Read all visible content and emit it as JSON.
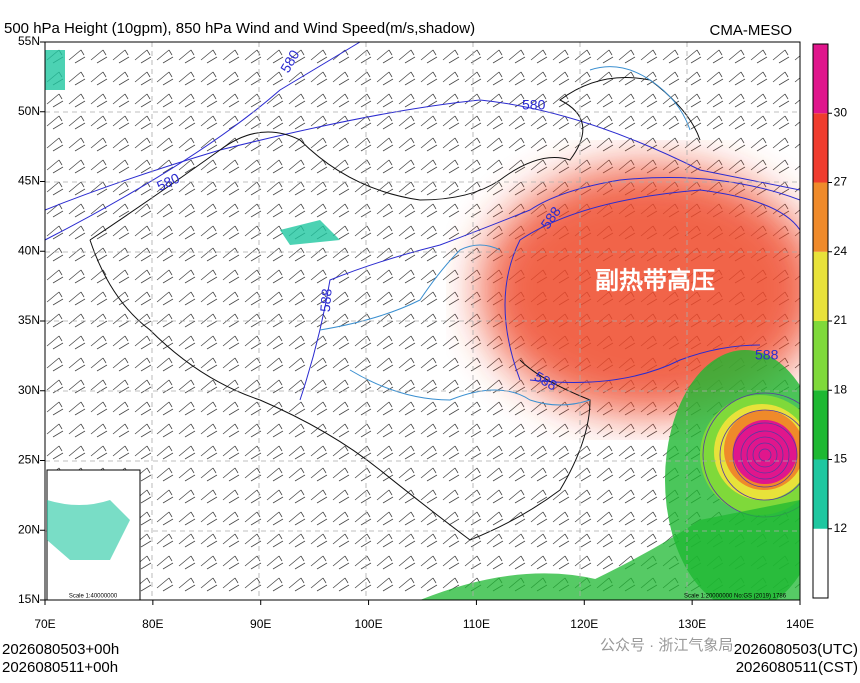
{
  "header": {
    "title": "500 hPa Height (10gpm), 850 hPa Wind and Wind Speed(m/s,shadow)",
    "source": "CMA-MESO"
  },
  "axes": {
    "lat_labels": [
      "55N",
      "50N",
      "45N",
      "40N",
      "35N",
      "30N",
      "25N",
      "20N",
      "15N"
    ],
    "lon_labels": [
      "70E",
      "80E",
      "90E",
      "100E",
      "110E",
      "120E",
      "130E",
      "140E"
    ]
  },
  "colorbar": {
    "ticks": [
      12,
      15,
      18,
      21,
      24,
      27,
      30
    ],
    "colors": [
      "#ffffff",
      "#1fc7a0",
      "#1eb832",
      "#7fd93a",
      "#e8e23a",
      "#ef8a2a",
      "#ef3c2e",
      "#e0168c"
    ]
  },
  "annotations": {
    "region_label": "副热带高压",
    "contour_labels": [
      "580",
      "580",
      "580",
      "588",
      "588",
      "588",
      "588"
    ],
    "inset_scale": "Scale 1:40000000",
    "map_scale": "Scale 1:20000000 No:GS (2019) 1786"
  },
  "footer": {
    "left_init": "2026080503+00h",
    "left_valid": "2026080511+00h",
    "right_init": "2026080503(UTC)",
    "right_valid": "2026080511(CST)",
    "watermark": "公众号 · 浙江气象局"
  }
}
